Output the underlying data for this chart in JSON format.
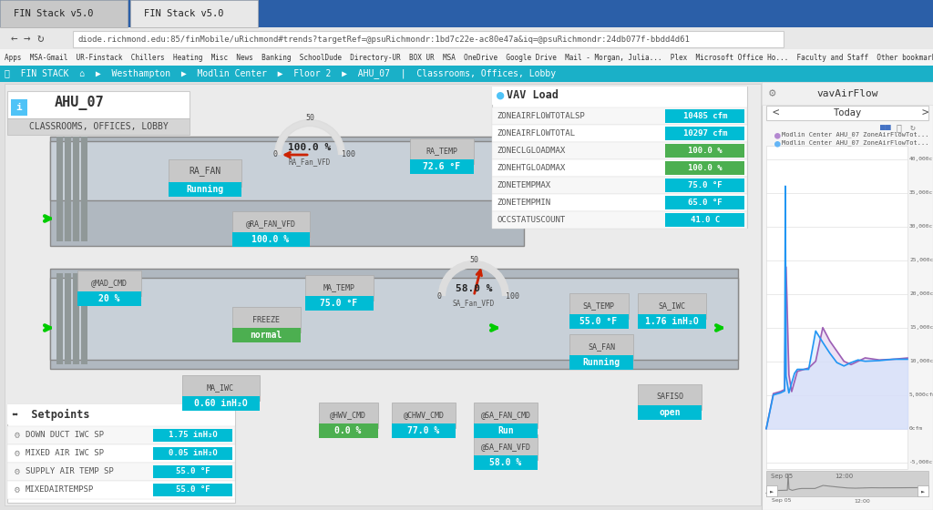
{
  "title": "AHU_07",
  "subtitle": "CLASSROOMS, OFFICES, LOBBY",
  "browser_tab": "FIN Stack v5.0",
  "url": "diode.richmond.edu:85/finMobile/uRichmond#trends?targetRef=@psuRichmondr:1bd7c22e-ac80e47a&iq=@psuRichmondr:24db077f-bbdd4d61",
  "nav_path": "Westhampton ▶ Modlin Center ▶ Floor 2 ▶ AHU_07 | Classrooms, Offices, Lobby",
  "bg_color": "#e8e8e8",
  "browser_chrome_color": "#2b5fa8",
  "nav_bar_color": "#1ab0c8",
  "panel_bg": "#f0f0f0",
  "sidebar_title": "vavAirFlow",
  "sidebar_bg": "#f5f5f5",
  "vav_load_title": "VAV Load",
  "vav_load_data": [
    {
      "label": "ZONEAIRFLOWTOTALSP",
      "value": "10485 cfm",
      "value_color": "#00bcd4"
    },
    {
      "label": "ZONEAIRFLOWTOTAL",
      "value": "10297 cfm",
      "value_color": "#00bcd4"
    },
    {
      "label": "ZONECLGLOADMAX",
      "value": "100.0 %",
      "value_color": "#4caf50"
    },
    {
      "label": "ZONEHTGLOADMAX",
      "value": "100.0 %",
      "value_color": "#4caf50"
    },
    {
      "label": "ZONETEMPMAX",
      "value": "75.0 °F",
      "value_color": "#00bcd4"
    },
    {
      "label": "ZONETEMPMIN",
      "value": "65.0 °F",
      "value_color": "#00bcd4"
    },
    {
      "label": "OCCSTATUSCOUNT",
      "value": "41.0 C",
      "value_color": "#00bcd4"
    }
  ],
  "setpoints_data": [
    {
      "label": "DOWN DUCT IWC SP",
      "value": "1.75 inH₂O",
      "value_color": "#00bcd4"
    },
    {
      "label": "MIXED AIR IWC SP",
      "value": "0.05 inH₂O",
      "value_color": "#00bcd4"
    },
    {
      "label": "SUPPLY AIR TEMP SP",
      "value": "55.0 °F",
      "value_color": "#00bcd4"
    },
    {
      "label": "MIXEDAIRTEMPSP",
      "value": "55.0 °F",
      "value_color": "#00bcd4"
    }
  ],
  "status_items": [
    {
      "label": "RA_FAN",
      "value": "Running",
      "value_color": "#00bcd4"
    },
    {
      "label": "RA_FAN_VFD",
      "value": "100.0 %",
      "value_color": "#00bcd4"
    },
    {
      "label": "MAD_CMD",
      "value": "20 %",
      "value_color": "#00bcd4"
    },
    {
      "label": "MA_TEMP",
      "value": "75.0 °F",
      "value_color": "#00bcd4"
    },
    {
      "label": "RA_TEMP",
      "value": "72.6 °F",
      "value_color": "#00bcd4"
    },
    {
      "label": "FREEZE",
      "value": "normal",
      "value_color": "#4caf50"
    },
    {
      "label": "MA_IWC",
      "value": "0.60 inH₂O",
      "value_color": "#00bcd4"
    },
    {
      "label": "HWV_CMD",
      "value": "0.0 %",
      "value_color": "#4caf50"
    },
    {
      "label": "CHWV_CMD",
      "value": "77.0 %",
      "value_color": "#00bcd4"
    },
    {
      "label": "SA_FAN_CMD",
      "value": "Run",
      "value_color": "#00bcd4"
    },
    {
      "label": "SA_FAN_VFD",
      "value": "58.0 %",
      "value_color": "#00bcd4"
    },
    {
      "label": "SA_FAN",
      "value": "Running",
      "value_color": "#00bcd4"
    },
    {
      "label": "SA_TEMP",
      "value": "55.0 °F",
      "value_color": "#00bcd4"
    },
    {
      "label": "SA_IWC",
      "value": "1.76 inH₂O",
      "value_color": "#00bcd4"
    },
    {
      "label": "SAFISO",
      "value": "open",
      "value_color": "#00bcd4"
    }
  ],
  "ra_fan_vfd_pct": 100.0,
  "sa_fan_vfd_pct": 58.0,
  "chart_legend": [
    {
      "label": "Modlin Center AHU_07 ZoneAirFlowTot...",
      "color": "#b388d0"
    },
    {
      "label": "Modlin Center AHU_07 ZoneAirFlowTot...",
      "color": "#64b5f6"
    }
  ],
  "chart_yticks": [
    "40,000cfm",
    "35,000cfm",
    "30,000cfm",
    "25,000cfm",
    "20,000cfm",
    "15,000cfm",
    "10,000cfm",
    "5,000cfm",
    "0cfm",
    "-5,000cfm"
  ],
  "chart_ytick_vals": [
    40000,
    35000,
    30000,
    25000,
    20000,
    15000,
    10000,
    5000,
    0,
    -5000
  ],
  "chart_xlabels": [
    "Sep 05",
    "12:00"
  ],
  "chart_line1_x": [
    0,
    0.05,
    0.1,
    0.13,
    0.14,
    0.16,
    0.18,
    0.2,
    0.22,
    0.3,
    0.35,
    0.4,
    0.45,
    0.5,
    0.55,
    0.6,
    0.65,
    0.7,
    0.8,
    0.9,
    1.0
  ],
  "chart_line1_y": [
    0,
    5200,
    5500,
    5800,
    24000,
    8000,
    5500,
    7000,
    8500,
    9000,
    10000,
    15000,
    13000,
    11500,
    10000,
    9500,
    10000,
    10500,
    10200,
    10300,
    10485
  ],
  "chart_line2_x": [
    0,
    0.05,
    0.1,
    0.13,
    0.135,
    0.14,
    0.16,
    0.18,
    0.2,
    0.22,
    0.3,
    0.35,
    0.4,
    0.45,
    0.5,
    0.55,
    0.6,
    0.65,
    0.7,
    0.8,
    0.9,
    1.0
  ],
  "chart_line2_y": [
    0,
    5000,
    5300,
    5600,
    36000,
    7800,
    5300,
    6800,
    8200,
    8800,
    8800,
    14500,
    12800,
    11200,
    9800,
    9300,
    9800,
    10200,
    10000,
    10100,
    10297,
    10297
  ]
}
